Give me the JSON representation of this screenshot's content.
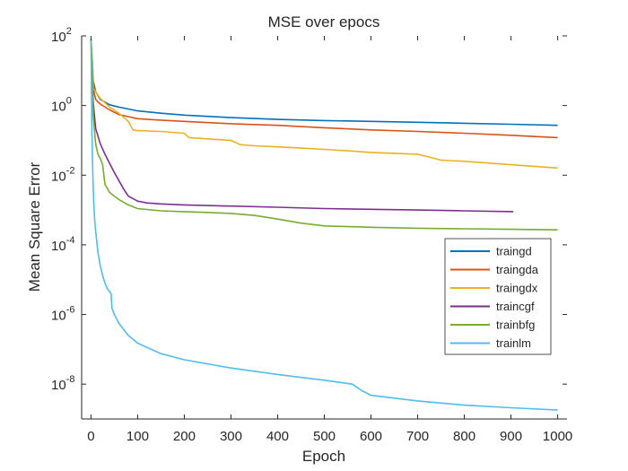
{
  "chart_data": {
    "type": "line",
    "title": "MSE over epocs",
    "xlabel": "Epoch",
    "ylabel": "Mean Square Error",
    "xlim": [
      -20,
      1020
    ],
    "ylim": [
      1e-09,
      100
    ],
    "yscale": "log",
    "grid": false,
    "legend_position": "right",
    "xticks": [
      0,
      100,
      200,
      300,
      400,
      500,
      600,
      700,
      800,
      900,
      1000
    ],
    "yticks": [
      {
        "value": 1e-08,
        "base": "10",
        "exp": "-8"
      },
      {
        "value": 1e-06,
        "base": "10",
        "exp": "-6"
      },
      {
        "value": 0.0001,
        "base": "10",
        "exp": "-4"
      },
      {
        "value": 0.01,
        "base": "10",
        "exp": "-2"
      },
      {
        "value": 1,
        "base": "10",
        "exp": "0"
      },
      {
        "value": 100,
        "base": "10",
        "exp": "2"
      }
    ],
    "series": [
      {
        "name": "traingd",
        "color": "#0072BD",
        "x": [
          0,
          3,
          5,
          10,
          20,
          40,
          60,
          100,
          150,
          200,
          300,
          400,
          500,
          600,
          700,
          800,
          900,
          1000
        ],
        "y": [
          80,
          15,
          5,
          2.5,
          1.5,
          1.05,
          0.9,
          0.7,
          0.6,
          0.53,
          0.45,
          0.4,
          0.37,
          0.35,
          0.33,
          0.31,
          0.29,
          0.27
        ]
      },
      {
        "name": "traingda",
        "color": "#D95319",
        "x": [
          0,
          3,
          5,
          10,
          20,
          40,
          60,
          80,
          100,
          150,
          200,
          300,
          400,
          500,
          600,
          700,
          800,
          900,
          1000
        ],
        "y": [
          80,
          10,
          3,
          1.5,
          1.1,
          0.75,
          0.55,
          0.48,
          0.42,
          0.38,
          0.35,
          0.3,
          0.27,
          0.23,
          0.2,
          0.18,
          0.16,
          0.14,
          0.12
        ]
      },
      {
        "name": "traingdx",
        "color": "#EDB120",
        "x": [
          0,
          3,
          5,
          10,
          20,
          40,
          60,
          80,
          90,
          100,
          150,
          200,
          210,
          250,
          300,
          320,
          350,
          400,
          450,
          500,
          550,
          600,
          700,
          750,
          800,
          900,
          1000
        ],
        "y": [
          80,
          20,
          3.2,
          2.5,
          1.6,
          0.9,
          0.6,
          0.35,
          0.2,
          0.19,
          0.18,
          0.16,
          0.12,
          0.11,
          0.1,
          0.075,
          0.07,
          0.065,
          0.06,
          0.055,
          0.05,
          0.045,
          0.04,
          0.027,
          0.025,
          0.02,
          0.016
        ]
      },
      {
        "name": "traincgf",
        "color": "#7E2F8E",
        "x": [
          0,
          3,
          5,
          10,
          20,
          30,
          50,
          70,
          80,
          100,
          120,
          150,
          200,
          300,
          400,
          500,
          600,
          700,
          800,
          905
        ],
        "y": [
          80,
          5,
          1.2,
          0.22,
          0.08,
          0.04,
          0.012,
          0.004,
          0.0025,
          0.0018,
          0.0016,
          0.0015,
          0.0014,
          0.0013,
          0.0012,
          0.0011,
          0.00105,
          0.001,
          0.00095,
          0.0009
        ]
      },
      {
        "name": "trainbfg",
        "color": "#77AC30",
        "x": [
          0,
          3,
          5,
          10,
          15,
          20,
          25,
          30,
          40,
          50,
          60,
          80,
          100,
          150,
          200,
          250,
          300,
          350,
          400,
          450,
          500,
          600,
          700,
          800,
          900,
          1000
        ],
        "y": [
          80,
          10,
          0.5,
          0.08,
          0.04,
          0.03,
          0.02,
          0.0055,
          0.0032,
          0.0025,
          0.002,
          0.0014,
          0.0011,
          0.00095,
          0.0009,
          0.00085,
          0.0008,
          0.0007,
          0.00055,
          0.00042,
          0.00035,
          0.00032,
          0.0003,
          0.00029,
          0.00028,
          0.00027
        ]
      },
      {
        "name": "trainlm",
        "color": "#4DBEEE",
        "x": [
          0,
          2,
          4,
          6,
          8,
          10,
          15,
          20,
          25,
          30,
          35,
          40,
          43,
          45,
          50,
          60,
          80,
          100,
          150,
          200,
          300,
          400,
          500,
          560,
          580,
          600,
          700,
          800,
          900,
          1000
        ],
        "y": [
          80,
          0.2,
          0.01,
          0.0015,
          0.0005,
          0.00025,
          6e-05,
          2.5e-05,
          1.3e-05,
          8e-06,
          5.5e-06,
          4.5e-06,
          4e-06,
          1.5e-06,
          1e-06,
          5.5e-07,
          2.5e-07,
          1.5e-07,
          7.5e-08,
          5e-08,
          2.9e-08,
          1.9e-08,
          1.3e-08,
          1e-08,
          6.5e-09,
          4.8e-09,
          3.3e-09,
          2.5e-09,
          2.1e-09,
          1.8e-09
        ]
      }
    ]
  }
}
